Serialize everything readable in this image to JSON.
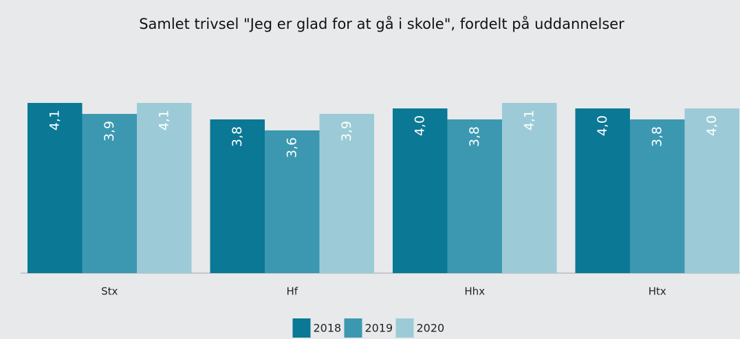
{
  "chart_data": {
    "type": "bar",
    "title": "Samlet trivsel \"Jeg er glad for at gå i skole\", fordelt på uddannelser",
    "categories": [
      "Stx",
      "Hf",
      "Hhx",
      "Htx"
    ],
    "series": [
      {
        "name": "2018",
        "color": "#0b7895",
        "values": [
          4.1,
          3.8,
          4.0,
          4.0
        ],
        "value_labels": [
          "4,1",
          "3,8",
          "4,0",
          "4,0"
        ]
      },
      {
        "name": "2019",
        "color": "#3c98b1",
        "values": [
          3.9,
          3.6,
          3.8,
          3.8
        ],
        "value_labels": [
          "3,9",
          "3,6",
          "3,8",
          "3,8"
        ]
      },
      {
        "name": "2020",
        "color": "#9ccbd7",
        "values": [
          4.1,
          3.9,
          4.1,
          4.0
        ],
        "value_labels": [
          "4,1",
          "3,9",
          "4,1",
          "4,0"
        ]
      }
    ],
    "ylim": [
      1,
      5
    ],
    "legend": "bottom"
  }
}
